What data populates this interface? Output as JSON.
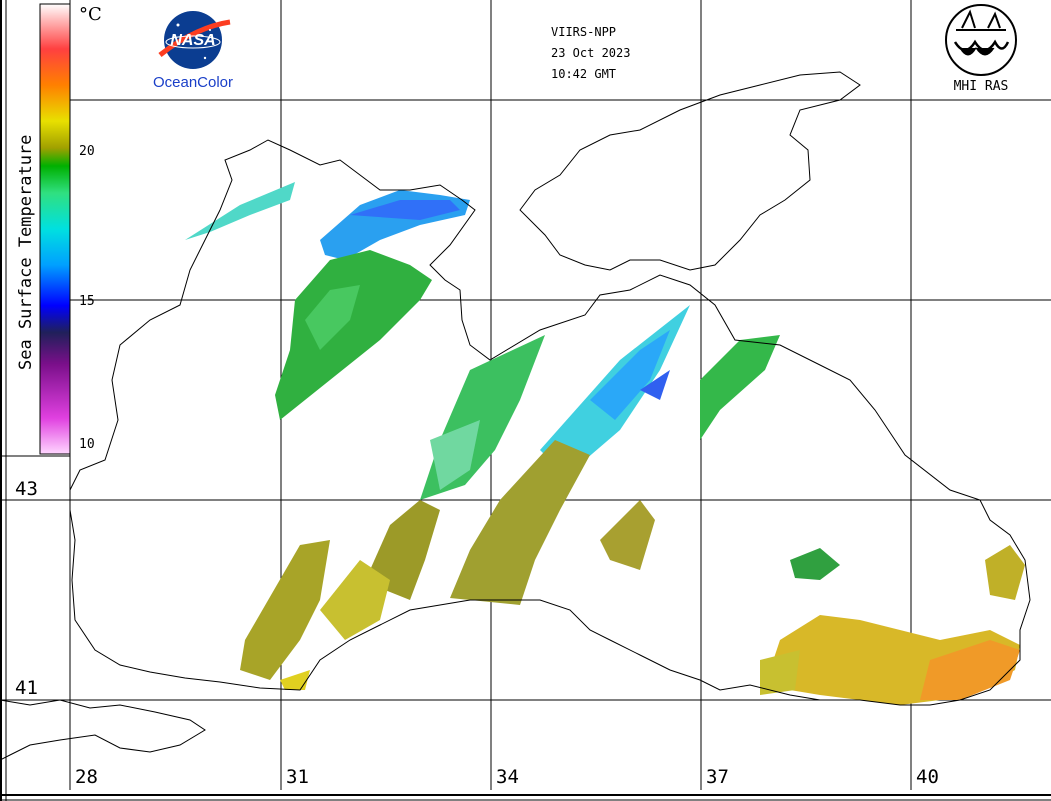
{
  "header": {
    "satellite": "VIIRS-NPP",
    "date": "23 Oct 2023",
    "time": "10:42 GMT"
  },
  "logos": {
    "nasa_wordmark": "NASA",
    "nasa_label": "OceanColor",
    "mhi_label": "MHI RAS"
  },
  "colorbar": {
    "title": "Sea Surface Temperature",
    "unit": "°C",
    "tick_labels": [
      "20",
      "15",
      "10"
    ],
    "range": [
      10,
      25
    ],
    "colors": [
      "#ffd6ff",
      "#e040e0",
      "#7a0f8a",
      "#20205a",
      "#0000ff",
      "#00a0ff",
      "#00e0e0",
      "#30e080",
      "#00b000",
      "#a0a000",
      "#e8e000",
      "#ff8000",
      "#ff4040",
      "#ffb0b0",
      "#ffffff"
    ]
  },
  "map": {
    "longitude_labels": [
      "28",
      "31",
      "34",
      "37",
      "40"
    ],
    "latitude_labels": [
      "43",
      "41"
    ],
    "grid_color": "#000000",
    "land_color": "#ffffff",
    "coast_color": "#000000",
    "sst_colors": {
      "cool": "#00c8ff",
      "cold": "#2060ff",
      "mid": "#30c040",
      "warm_olive": "#a0a020",
      "warm_yellow": "#e0d020",
      "hot_orange": "#f0a020"
    }
  }
}
